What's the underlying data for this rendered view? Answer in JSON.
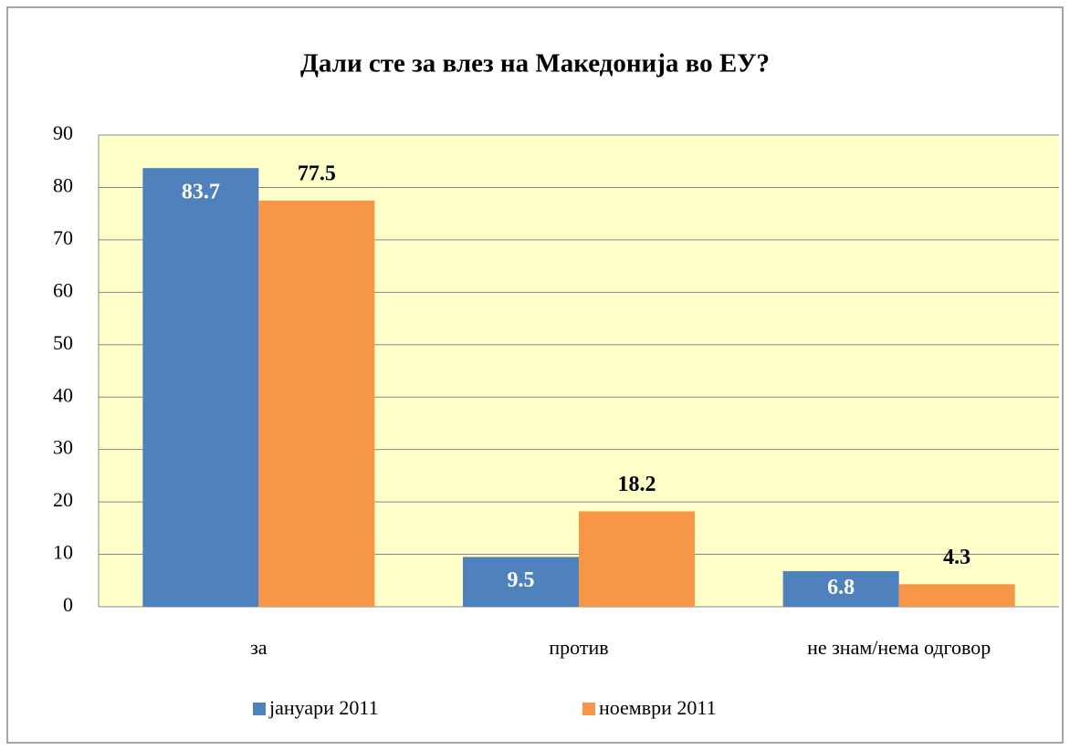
{
  "chart_data": {
    "type": "bar",
    "title": "Дали сте за влез на Македонија во ЕУ?",
    "categories": [
      "за",
      "против",
      "не знам/нема одговор"
    ],
    "series": [
      {
        "name": "јануари 2011",
        "color": "#4f81bd",
        "values": [
          83.7,
          9.5,
          6.8
        ]
      },
      {
        "name": "ноември 2011",
        "color": "#f79646",
        "values": [
          77.5,
          18.2,
          4.3
        ]
      }
    ],
    "ylim": [
      0,
      90
    ],
    "yticks": [
      0,
      10,
      20,
      30,
      40,
      50,
      60,
      70,
      80,
      90
    ],
    "grid": true,
    "legend": "bottom"
  }
}
